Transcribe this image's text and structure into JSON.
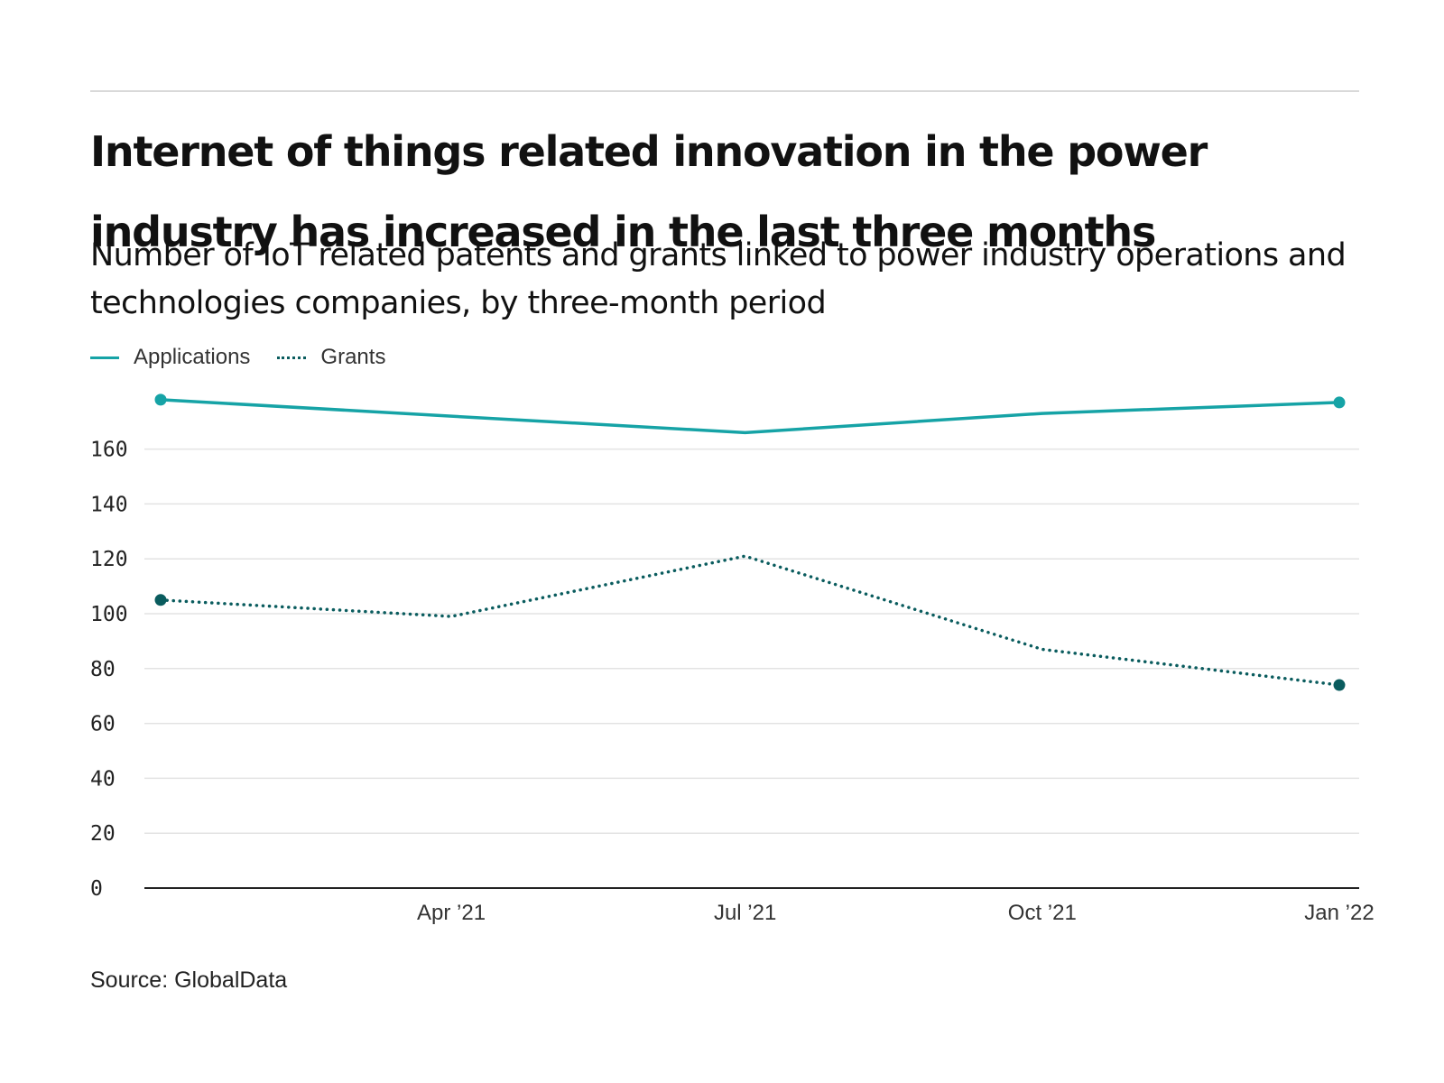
{
  "title": "Internet of things related innovation in the power industry has increased in the last three months",
  "subtitle": "Number of IoT related patents and grants linked to power industry operations and technologies companies, by three-month period",
  "source": "Source: GlobalData",
  "colors": {
    "applications": "#16a3a6",
    "grants": "#0a5c5e",
    "grid": "#e3e3e3",
    "axis": "#222222"
  },
  "chart_data": {
    "type": "line",
    "x": [
      "2021-01",
      "2021-04",
      "2021-07",
      "2021-10",
      "2022-01"
    ],
    "x_tick_labels": [
      "Apr ’21",
      "Jul ’21",
      "Oct ’21",
      "Jan ’22"
    ],
    "x_ticks": [
      "2021-04-01",
      "2021-07-01",
      "2021-10-01",
      "2022-01-01"
    ],
    "series": [
      {
        "name": "Applications",
        "values": [
          178,
          172,
          166,
          173,
          177
        ],
        "style": "solid"
      },
      {
        "name": "Grants",
        "values": [
          105,
          99,
          121,
          87,
          74
        ],
        "style": "dotted"
      }
    ],
    "y_ticks": [
      0,
      20,
      40,
      60,
      80,
      100,
      120,
      140,
      160
    ],
    "ylim": [
      0,
      180
    ],
    "grid": true,
    "legend": "top-left"
  }
}
